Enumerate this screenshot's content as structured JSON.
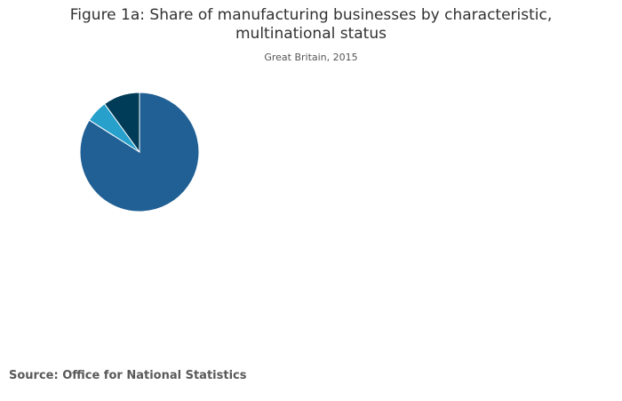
{
  "chart_data": {
    "type": "pie",
    "title": "Figure 1a: Share of manufacturing businesses by characteristic, multinational status",
    "subtitle": "Great Britain, 2015",
    "source": "Source: Office for National Statistics",
    "slices": [
      {
        "value": 84,
        "color": "#206095"
      },
      {
        "value": 6,
        "color": "#27a0cc"
      },
      {
        "value": 10,
        "color": "#003c57"
      }
    ],
    "start_angle_deg": 0,
    "direction": "clockwise",
    "legend": "none"
  }
}
